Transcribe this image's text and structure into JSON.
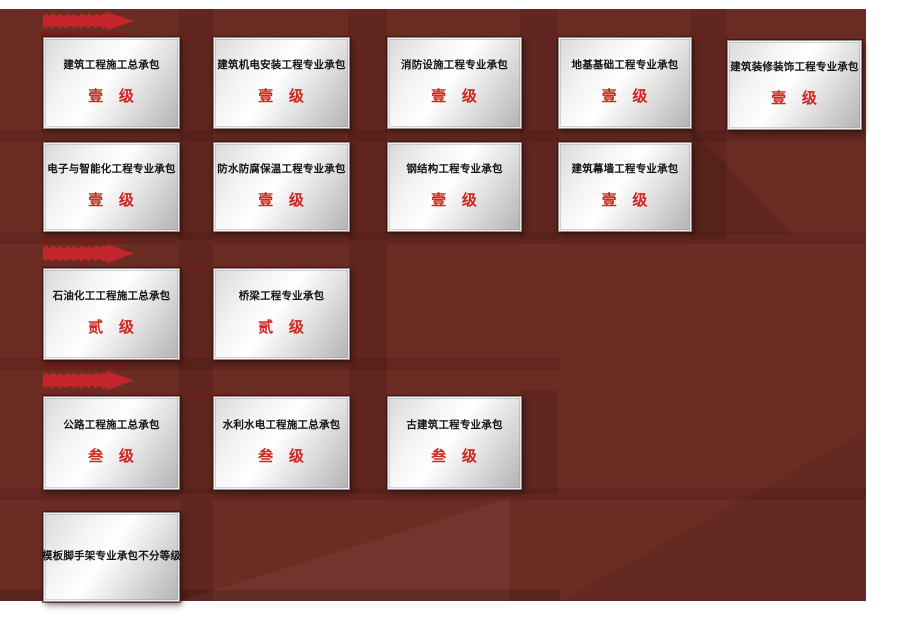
{
  "board": {
    "description": "construction enterprise qualification plaques",
    "background_color": "#6b2c24",
    "plaque_color": "silver-gradient",
    "arrow_color": "#c2262a",
    "grade_color": "#cd2721",
    "title_color": "#151515"
  },
  "decorations": {
    "arrows": [
      "red-brush-arrow-top-clipped",
      "red-brush-arrow-row-3",
      "red-brush-arrow-row-4"
    ]
  },
  "cards": [
    {
      "title": "建筑工程施工总承包",
      "grade": "壹 级"
    },
    {
      "title": "建筑机电安装工程专业承包",
      "grade": "壹 级"
    },
    {
      "title": "消防设施工程专业承包",
      "grade": "壹 级"
    },
    {
      "title": "地基基础工程专业承包",
      "grade": "壹 级"
    },
    {
      "title": "建筑装修装饰工程专业承包",
      "grade": "壹 级"
    },
    {
      "title": "电子与智能化工程专业承包",
      "grade": "壹 级"
    },
    {
      "title": "防水防腐保温工程专业承包",
      "grade": "壹 级"
    },
    {
      "title": "钢结构工程专业承包",
      "grade": "壹 级"
    },
    {
      "title": "建筑幕墙工程专业承包",
      "grade": "壹 级"
    },
    {
      "title": "石油化工工程施工总承包",
      "grade": "贰 级"
    },
    {
      "title": "桥梁工程专业承包",
      "grade": "贰 级"
    },
    {
      "title": "公路工程施工总承包",
      "grade": "叁 级"
    },
    {
      "title": "水利水电工程施工总承包",
      "grade": "叁 级"
    },
    {
      "title": "古建筑工程专业承包",
      "grade": "叁 级"
    },
    {
      "title": "模板脚手架专业承包不分等级",
      "grade": ""
    }
  ]
}
